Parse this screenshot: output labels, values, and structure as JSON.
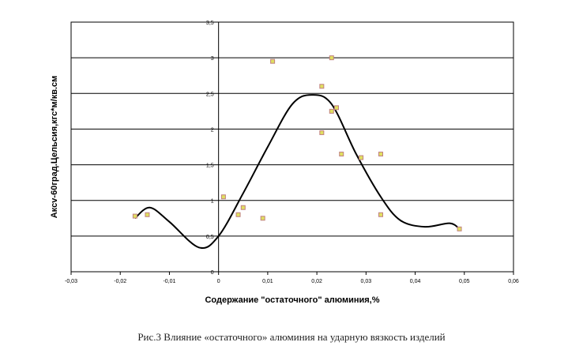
{
  "chart_data": {
    "type": "scatter",
    "xlabel": "Содержание \"остаточного\" алюминия,%",
    "ylabel": "Акcv-60град.Цельсия,кгс*м/кв.см",
    "xlim": [
      -0.03,
      0.06
    ],
    "ylim": [
      0,
      3.5
    ],
    "x_ticks": [
      "-0,03",
      "-0,02",
      "-0,01",
      "0",
      "0,01",
      "0,02",
      "0,03",
      "0,04",
      "0,05",
      "0,06"
    ],
    "y_ticks": [
      "0",
      "0,5",
      "1",
      "1,5",
      "2",
      "2,5",
      "3",
      "3,5"
    ],
    "grid": "horizontal",
    "points": [
      {
        "x": -0.017,
        "y": 0.78
      },
      {
        "x": -0.0145,
        "y": 0.8
      },
      {
        "x": 0.001,
        "y": 1.05
      },
      {
        "x": 0.004,
        "y": 0.8
      },
      {
        "x": 0.005,
        "y": 0.9
      },
      {
        "x": 0.009,
        "y": 0.75
      },
      {
        "x": 0.011,
        "y": 2.95
      },
      {
        "x": 0.021,
        "y": 2.6
      },
      {
        "x": 0.021,
        "y": 1.95
      },
      {
        "x": 0.023,
        "y": 3.0
      },
      {
        "x": 0.023,
        "y": 2.25
      },
      {
        "x": 0.024,
        "y": 2.3
      },
      {
        "x": 0.025,
        "y": 1.65
      },
      {
        "x": 0.029,
        "y": 1.6
      },
      {
        "x": 0.033,
        "y": 1.65
      },
      {
        "x": 0.033,
        "y": 0.8
      },
      {
        "x": 0.049,
        "y": 0.6
      }
    ],
    "trend": [
      {
        "x": -0.017,
        "y": 0.75
      },
      {
        "x": -0.014,
        "y": 0.9
      },
      {
        "x": -0.01,
        "y": 0.7
      },
      {
        "x": -0.004,
        "y": 0.34
      },
      {
        "x": 0.0,
        "y": 0.5
      },
      {
        "x": 0.005,
        "y": 1.1
      },
      {
        "x": 0.01,
        "y": 1.75
      },
      {
        "x": 0.015,
        "y": 2.35
      },
      {
        "x": 0.019,
        "y": 2.48
      },
      {
        "x": 0.023,
        "y": 2.35
      },
      {
        "x": 0.028,
        "y": 1.65
      },
      {
        "x": 0.033,
        "y": 1.05
      },
      {
        "x": 0.037,
        "y": 0.72
      },
      {
        "x": 0.042,
        "y": 0.63
      },
      {
        "x": 0.047,
        "y": 0.68
      },
      {
        "x": 0.049,
        "y": 0.6
      }
    ],
    "colors": {
      "marker_fill": "#e0e060",
      "marker_edge": "#c08080",
      "trend": "#000000",
      "grid": "#000000"
    }
  },
  "caption": "Рис.3 Влияние «остаточного» алюминия на ударную вязкость изделий"
}
